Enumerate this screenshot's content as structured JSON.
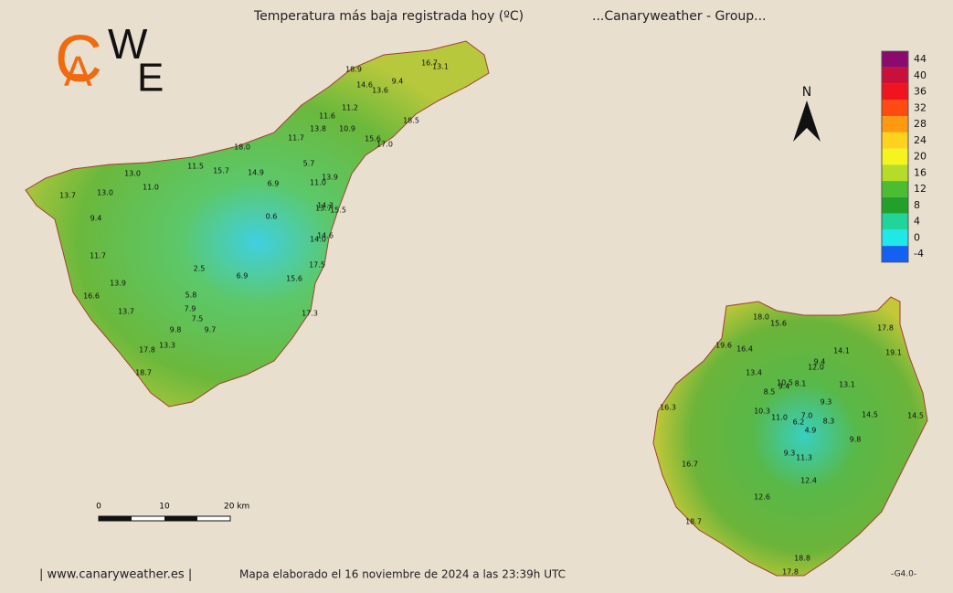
{
  "header": {
    "title": "Temperatura más baja registrada hoy (ºC)",
    "subtitle": "...Canaryweather - Group..."
  },
  "logo": [
    "C",
    "A",
    "W",
    "E"
  ],
  "legend": {
    "ticks": [
      44,
      40,
      36,
      32,
      28,
      24,
      20,
      16,
      12,
      8,
      4,
      0,
      -4
    ],
    "colors": [
      "#8b0a6e",
      "#c8103a",
      "#f0141e",
      "#ff4a10",
      "#ff9a10",
      "#ffd21e",
      "#f4f41e",
      "#b4dc28",
      "#4cbc32",
      "#22a02c",
      "#20d49a",
      "#20e8e8",
      "#1460f0"
    ]
  },
  "north": "N",
  "scale_bar": {
    "labels": [
      "0",
      "10",
      "20 km"
    ]
  },
  "stations": {
    "tenerife": [
      "18.9",
      "16.7",
      "13.1",
      "9.4",
      "14.6",
      "13.6",
      "11.2",
      "18.5",
      "11.6",
      "13.8",
      "10.9",
      "15.6",
      "17.0",
      "11.7",
      "18.0",
      "5.7",
      "11.5",
      "15.7",
      "14.9",
      "13.0",
      "13.9",
      "6.9",
      "11.0",
      "11.0",
      "13.7",
      "13.0",
      "14.3",
      "13.7",
      "15.5",
      "0.6",
      "9.4",
      "14.6",
      "14.0",
      "11.7",
      "17.5",
      "2.5",
      "6.9",
      "15.6",
      "13.9",
      "16.6",
      "5.8",
      "13.7",
      "7.9",
      "17.3",
      "7.5",
      "9.8",
      "9.7",
      "13.3",
      "17.8",
      "18.7"
    ],
    "gran_canaria": [
      "18.0",
      "15.6",
      "17.8",
      "19.6",
      "16.4",
      "14.1",
      "19.1",
      "9.4",
      "12.0",
      "13.4",
      "8.1",
      "10.5",
      "9.4",
      "13.1",
      "8.5",
      "9.3",
      "16.3",
      "10.3",
      "11.0",
      "7.0",
      "6.2",
      "8.3",
      "14.5",
      "14.5",
      "4.9",
      "9.8",
      "9.3",
      "11.3",
      "16.7",
      "12.4",
      "12.6",
      "18.7",
      "18.8",
      "17.8"
    ]
  },
  "footer": {
    "site": "| www.canaryweather.es |",
    "credit": "Mapa elaborado el 16 noviembre de 2024 a las 23:39h UTC",
    "version": "-G4.0-"
  }
}
